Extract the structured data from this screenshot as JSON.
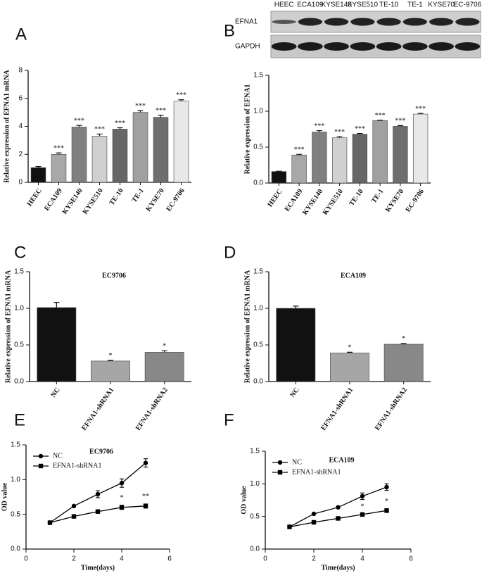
{
  "chart_data": [
    {
      "type": "bar",
      "panel_label": "A",
      "y_label": "Relative expression of EFNA1 mRNA",
      "categories": [
        "HEEC",
        "ECA109",
        "KYSE140",
        "KYSE510",
        "TE-10",
        "TE-1",
        "KYSE70",
        "EC-9706"
      ],
      "values": [
        1.05,
        2.0,
        3.95,
        3.3,
        3.8,
        5.0,
        4.65,
        5.8
      ],
      "errors": [
        0.08,
        0.1,
        0.12,
        0.15,
        0.1,
        0.12,
        0.15,
        0.1
      ],
      "colors": [
        "#111111",
        "#a8a8a8",
        "#7f7f7f",
        "#d0d0d0",
        "#666666",
        "#a0a0a0",
        "#6e6e6e",
        "#e8e8e8"
      ],
      "annotations": [
        null,
        "***",
        "***",
        "***",
        "***",
        "***",
        "***",
        "***"
      ],
      "ylim": [
        0,
        8
      ],
      "yticks": [
        0,
        2,
        4,
        6,
        8
      ]
    },
    {
      "type": "bar",
      "panel_label": "B",
      "y_label": "Relative expression of EFNA1",
      "blot": {
        "row_labels": [
          "EFNA1",
          "GAPDH"
        ],
        "column_labels": [
          "HEEC",
          "ECA109",
          "KYSE140",
          "KYSE510",
          "TE-10",
          "TE-1",
          "KYSE70",
          "EC-9706"
        ]
      },
      "categories": [
        "HEEC",
        "ECA109",
        "KYSE140",
        "KYSE510",
        "TE-10",
        "TE-1",
        "KYSE70",
        "EC-9706"
      ],
      "values": [
        0.16,
        0.39,
        0.71,
        0.63,
        0.68,
        0.87,
        0.79,
        0.96
      ],
      "errors": [
        0.005,
        0.01,
        0.02,
        0.015,
        0.01,
        0.005,
        0.01,
        0.01
      ],
      "colors": [
        "#111111",
        "#a8a8a8",
        "#7f7f7f",
        "#d0d0d0",
        "#666666",
        "#a0a0a0",
        "#6e6e6e",
        "#e8e8e8"
      ],
      "annotations": [
        null,
        "***",
        "***",
        "***",
        "***",
        "***",
        "***",
        "***"
      ],
      "ylim": [
        0,
        1.5
      ],
      "yticks": [
        {
          "value": 0,
          "label": "0.0"
        },
        0.5,
        {
          "value": 1,
          "label": "1.0"
        },
        1.5
      ]
    },
    {
      "type": "bar",
      "panel_label": "C",
      "title": "EC9706",
      "y_label": "Relative expression of EFNA1 mRNA",
      "categories": [
        "NC",
        "EFNA1-shRNA1",
        "EFNA1-shRNA2"
      ],
      "values": [
        1.01,
        0.28,
        0.4
      ],
      "errors": [
        0.07,
        0.01,
        0.02
      ],
      "colors": [
        "#111111",
        "#a6a6a6",
        "#888888"
      ],
      "annotations": [
        null,
        "*",
        "*"
      ],
      "ylim": [
        0,
        1.5
      ],
      "yticks": [
        {
          "value": 0,
          "label": "0.0"
        },
        0.5,
        {
          "value": 1,
          "label": "1.0"
        },
        1.5
      ]
    },
    {
      "type": "bar",
      "panel_label": "D",
      "title": "ECA109",
      "y_label": "Relative expression of EFNA1 mRNA",
      "categories": [
        "NC",
        "EFNA1-shRNA1",
        "EFNA1-shRNA2"
      ],
      "values": [
        1.0,
        0.39,
        0.51
      ],
      "errors": [
        0.03,
        0.01,
        0.01
      ],
      "colors": [
        "#111111",
        "#a6a6a6",
        "#888888"
      ],
      "annotations": [
        null,
        "*",
        "*"
      ],
      "ylim": [
        0,
        1.5
      ],
      "yticks": [
        {
          "value": 0,
          "label": "0.0"
        },
        0.5,
        {
          "value": 1,
          "label": "1.0"
        },
        1.5
      ]
    },
    {
      "type": "line",
      "panel_label": "E",
      "title": "EC9706",
      "x_label": "Time(days)",
      "y_label": "OD value",
      "x": [
        1,
        2,
        3,
        4,
        5
      ],
      "series": [
        {
          "name": "NC",
          "color": "#000000",
          "marker": "circle",
          "values": [
            0.38,
            0.62,
            0.79,
            0.95,
            1.24
          ],
          "errors": [
            0.02,
            0.01,
            0.05,
            0.06,
            0.06
          ]
        },
        {
          "name": "EFNA1-shRNA1",
          "color": "#000000",
          "marker": "square",
          "values": [
            0.38,
            0.47,
            0.54,
            0.6,
            0.62
          ],
          "errors": [
            0.02,
            0.01,
            0.02,
            0.03,
            0.03
          ]
        }
      ],
      "annotations": [
        null,
        null,
        null,
        "*",
        "**"
      ],
      "xlim": [
        0,
        6
      ],
      "xticks": [
        0,
        2,
        4,
        6
      ],
      "ylim": [
        0,
        1.5
      ],
      "yticks": [
        {
          "value": 0,
          "label": "0.0"
        },
        0.5,
        {
          "value": 1,
          "label": "1.0"
        },
        1.5
      ]
    },
    {
      "type": "line",
      "panel_label": "F",
      "title": "ECA109",
      "x_label": "Time(days)",
      "y_label": "OD value",
      "x": [
        1,
        2,
        3,
        4,
        5
      ],
      "series": [
        {
          "name": "NC",
          "color": "#000000",
          "marker": "circle",
          "values": [
            0.34,
            0.54,
            0.64,
            0.81,
            0.95
          ],
          "errors": [
            0.01,
            0.01,
            0.01,
            0.05,
            0.05
          ]
        },
        {
          "name": "EFNA1-shRNA1",
          "color": "#000000",
          "marker": "square",
          "values": [
            0.34,
            0.41,
            0.47,
            0.53,
            0.59
          ],
          "errors": [
            0.01,
            0.01,
            0.01,
            0.01,
            0.03
          ]
        }
      ],
      "annotations": [
        null,
        null,
        null,
        "*",
        "*"
      ],
      "xlim": [
        0,
        6
      ],
      "xticks": [
        0,
        2,
        4,
        6
      ],
      "ylim": [
        0,
        1.5
      ],
      "yticks": [
        {
          "value": 0,
          "label": "0.0"
        },
        0.5,
        {
          "value": 1,
          "label": "1.0"
        },
        1.5
      ]
    }
  ]
}
